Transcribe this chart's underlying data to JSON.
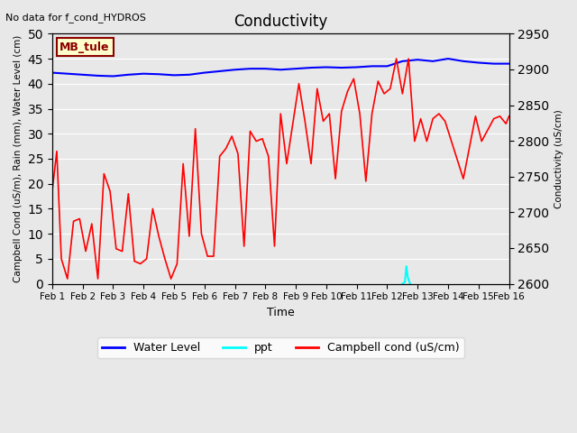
{
  "title": "Conductivity",
  "top_left_note": "No data for f_cond_HYDROS",
  "xlabel": "Time",
  "ylabel_left": "Campbell Cond (uS/m), Rain (mm), Water Level (cm)",
  "ylabel_right": "Conductivity (uS/cm)",
  "ylim_left": [
    0,
    50
  ],
  "ylim_right": [
    2600,
    2950
  ],
  "bg_color": "#e8e8e8",
  "box_label": "MB_tule",
  "box_color": "#ffffcc",
  "box_edge_color": "#8b0000",
  "xtick_labels": [
    "Feb 1",
    "Feb 2",
    "Feb 3",
    "Feb 4",
    "Feb 5",
    "Feb 6",
    "Feb 7",
    "Feb 8",
    "Feb 9",
    "Feb 10",
    "Feb 11",
    "Feb 12",
    "Feb 13",
    "Feb 14",
    "Feb 15",
    "Feb 16"
  ],
  "water_level_x": [
    0.0,
    0.5,
    1.0,
    1.5,
    2.0,
    2.5,
    3.0,
    3.5,
    4.0,
    4.5,
    5.0,
    5.5,
    6.0,
    6.5,
    7.0,
    7.5,
    8.0,
    8.5,
    9.0,
    9.5,
    10.0,
    10.5,
    11.0,
    11.5,
    12.0,
    12.5,
    13.0,
    13.5,
    14.0,
    14.5,
    15.0
  ],
  "water_level_y": [
    42.2,
    42.0,
    41.8,
    41.6,
    41.5,
    41.8,
    42.0,
    41.9,
    41.7,
    41.8,
    42.2,
    42.5,
    42.8,
    43.0,
    43.0,
    42.8,
    43.0,
    43.2,
    43.3,
    43.2,
    43.3,
    43.5,
    43.5,
    44.5,
    44.8,
    44.5,
    45.0,
    44.5,
    44.2,
    44.0,
    44.0
  ],
  "campbell_x": [
    0.0,
    0.15,
    0.3,
    0.5,
    0.7,
    0.9,
    1.1,
    1.3,
    1.5,
    1.7,
    1.9,
    2.1,
    2.3,
    2.5,
    2.7,
    2.9,
    3.1,
    3.3,
    3.5,
    3.7,
    3.9,
    4.1,
    4.3,
    4.5,
    4.7,
    4.9,
    5.1,
    5.3,
    5.5,
    5.7,
    5.9,
    6.1,
    6.3,
    6.5,
    6.7,
    6.9,
    7.1,
    7.3,
    7.5,
    7.7,
    7.9,
    8.1,
    8.3,
    8.5,
    8.7,
    8.9,
    9.1,
    9.3,
    9.5,
    9.7,
    9.9,
    10.1,
    10.3,
    10.5,
    10.7,
    10.9,
    11.1,
    11.3,
    11.5,
    11.7,
    11.9,
    12.1,
    12.3,
    12.5,
    12.7,
    12.9,
    13.5,
    13.9,
    14.1,
    14.5,
    14.7,
    14.9,
    15.0
  ],
  "campbell_y": [
    18.5,
    26.5,
    5.0,
    1.0,
    12.5,
    13.0,
    6.5,
    12.0,
    1.0,
    22.0,
    18.5,
    7.0,
    6.5,
    18.0,
    4.5,
    4.0,
    5.0,
    15.0,
    9.5,
    5.0,
    1.0,
    4.0,
    24.0,
    9.5,
    31.0,
    10.0,
    5.5,
    5.5,
    25.5,
    27.0,
    29.5,
    26.0,
    7.5,
    30.5,
    28.5,
    29.0,
    25.5,
    7.5,
    34.0,
    24.0,
    32.0,
    40.0,
    32.5,
    24.0,
    39.0,
    32.5,
    34.0,
    21.0,
    34.5,
    38.5,
    41.0,
    34.0,
    20.5,
    34.0,
    40.5,
    38.0,
    39.0,
    45.0,
    38.0,
    45.0,
    28.5,
    33.0,
    28.5,
    33.0,
    34.0,
    32.5,
    21.0,
    33.5,
    28.5,
    33.0,
    33.5,
    32.0,
    33.5
  ],
  "ppt_x": [
    11.5,
    11.58,
    11.63,
    11.68,
    11.75
  ],
  "ppt_y": [
    0.0,
    0.3,
    3.5,
    1.2,
    0.0
  ],
  "xmin": 0,
  "xmax": 15
}
